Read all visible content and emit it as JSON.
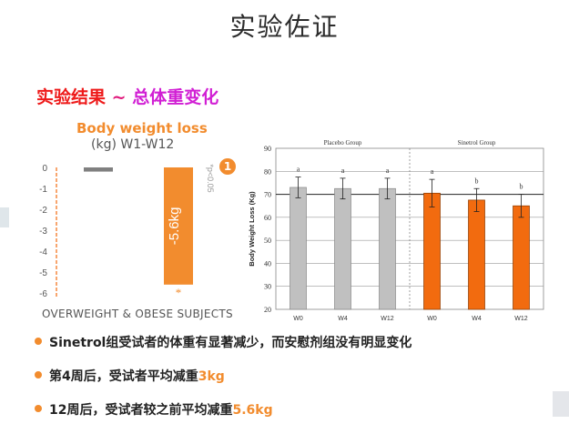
{
  "slide": {
    "title": "实验佐证",
    "subtitle_part1": "实验结果",
    "subtitle_tilde": "~",
    "subtitle_part2": "总体重变化"
  },
  "left_chart_text": {
    "title_line1": "Body weight loss",
    "title_line2": "(kg) W1-W12",
    "caption": "OVERWEIGHT & OBESE SUBJECTS",
    "badge": "1"
  },
  "bullets": [
    {
      "text": "Sinetrol组受试者的体重有显著减少，而安慰剂组没有明显变化",
      "highlight": ""
    },
    {
      "text": "第4周后，受试者平均减重",
      "highlight": "3kg"
    },
    {
      "text": "12周后，受试者较之前平均减重",
      "highlight": "5.6kg"
    }
  ],
  "colors": {
    "orange": "#f28c2e",
    "gray_bar": "#c0c0c0",
    "placebo_dark": "#808080",
    "sinetrol_bar": "#f26b0f"
  },
  "chart_data": [
    {
      "type": "bar",
      "title": "Body weight loss (kg) W1-W12",
      "categories": [
        "",
        ""
      ],
      "values": [
        -0.2,
        -5.6
      ],
      "bar_labels": [
        "",
        "-5.6kg"
      ],
      "significance": [
        "",
        "*"
      ],
      "pvalue_annotation": "*p<0.05",
      "ylim": [
        -6,
        0
      ],
      "yticks": [
        "0",
        "-1",
        "-2",
        "-3",
        "-4",
        "-5",
        "-6"
      ],
      "xlabel": "OVERWEIGHT & OBESE SUBJECTS"
    },
    {
      "type": "bar",
      "ylabel": "Body Weight Loss (Kg)",
      "ylim": [
        20,
        90
      ],
      "yticks": [
        "20",
        "30",
        "40",
        "50",
        "60",
        "70",
        "80",
        "90"
      ],
      "groups": [
        {
          "name": "Placebo Group",
          "categories": [
            "W0",
            "W4",
            "W12"
          ],
          "values": [
            73,
            72.5,
            72.5
          ],
          "errors": [
            4.5,
            4.5,
            4.5
          ],
          "letters": [
            "a",
            "a",
            "a"
          ]
        },
        {
          "name": "Sinetrol Group",
          "categories": [
            "W0",
            "W4",
            "W12"
          ],
          "values": [
            70.5,
            67.5,
            65
          ],
          "errors": [
            6,
            5,
            5
          ],
          "letters": [
            "a",
            "b",
            "b"
          ]
        }
      ]
    }
  ]
}
